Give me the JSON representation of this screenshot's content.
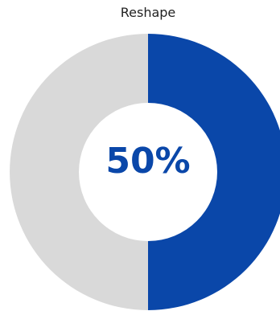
{
  "chart_data": {
    "type": "pie",
    "title": "Reshape",
    "center_label": "50%",
    "slices": [
      {
        "value": 50,
        "color": "#0a47a9"
      },
      {
        "value": 50,
        "color": "#d9d9d9"
      }
    ]
  }
}
